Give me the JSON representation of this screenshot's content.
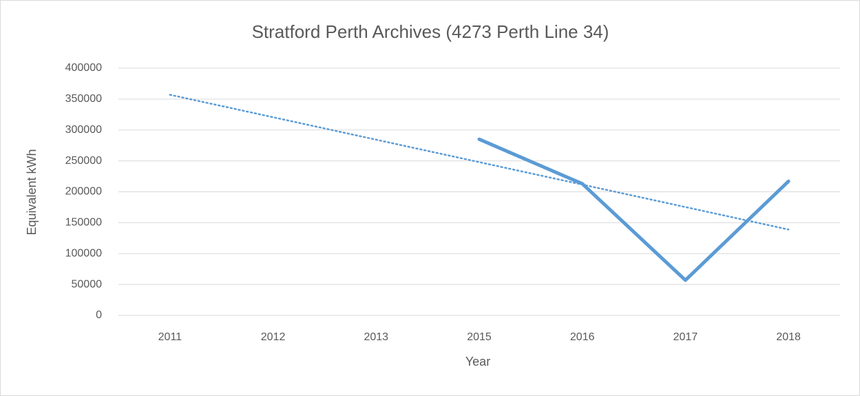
{
  "chart_data": {
    "type": "line",
    "title": "Stratford Perth Archives (4273 Perth Line 34)",
    "x_label": "Year",
    "y_label": "Equivalent kWh",
    "categories": [
      "2011",
      "2012",
      "2013",
      "2015",
      "2016",
      "2017",
      "2018"
    ],
    "series": [
      {
        "color": "#5b9bd5",
        "values": [
          null,
          null,
          null,
          285000,
          213000,
          57000,
          217000
        ]
      }
    ],
    "trendline": {
      "style": "dotted",
      "color": "#5b9bd5",
      "values": [
        357000,
        139000
      ]
    },
    "ylim": [
      0,
      400000
    ],
    "yticks": [
      0,
      50000,
      100000,
      150000,
      200000,
      250000,
      300000,
      350000,
      400000
    ],
    "grid": true
  }
}
